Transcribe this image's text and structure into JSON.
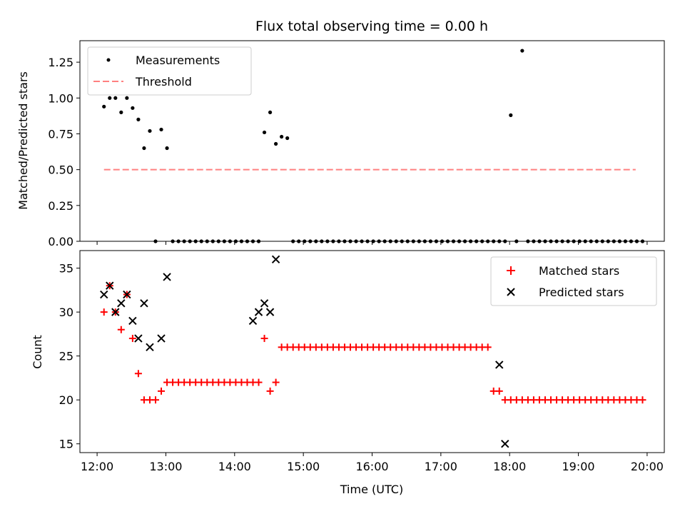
{
  "chart_data": [
    {
      "type": "scatter",
      "title": "Flux total observing time = 0.00 h",
      "xlabel": "",
      "ylabel": "Matched/Predicted stars",
      "xlim": [
        "11:45",
        "20:15"
      ],
      "ylim": [
        0,
        1.4
      ],
      "yticks": [
        "0.00",
        "0.25",
        "0.50",
        "0.75",
        "1.00",
        "1.25"
      ],
      "xticks": [
        "12:00",
        "13:00",
        "14:00",
        "15:00",
        "16:00",
        "17:00",
        "18:00",
        "19:00",
        "20:00"
      ],
      "legend_position": "top-left",
      "series": [
        {
          "name": "Measurements",
          "color": "#000000",
          "marker": "dot",
          "x": [
            "12:06",
            "12:11",
            "12:16",
            "12:21",
            "12:26",
            "12:31",
            "12:36",
            "12:41",
            "12:46",
            "12:51",
            "12:56",
            "13:01",
            "13:06",
            "13:11",
            "13:16",
            "13:21",
            "13:26",
            "13:31",
            "13:36",
            "13:41",
            "13:46",
            "13:51",
            "13:56",
            "14:01",
            "14:06",
            "14:11",
            "14:16",
            "14:21",
            "14:26",
            "14:31",
            "14:36",
            "14:41",
            "14:46",
            "14:51",
            "14:56",
            "15:01",
            "15:06",
            "15:11",
            "15:16",
            "15:21",
            "15:26",
            "15:31",
            "15:36",
            "15:41",
            "15:46",
            "15:51",
            "15:56",
            "16:01",
            "16:06",
            "16:11",
            "16:16",
            "16:21",
            "16:26",
            "16:31",
            "16:36",
            "16:41",
            "16:46",
            "16:51",
            "16:56",
            "17:01",
            "17:06",
            "17:11",
            "17:16",
            "17:21",
            "17:26",
            "17:31",
            "17:36",
            "17:41",
            "17:46",
            "17:51",
            "17:56",
            "18:01",
            "18:06",
            "18:11",
            "18:16",
            "18:21",
            "18:26",
            "18:31",
            "18:36",
            "18:41",
            "18:46",
            "18:51",
            "18:56",
            "19:01",
            "19:06",
            "19:11",
            "19:16",
            "19:21",
            "19:26",
            "19:31",
            "19:36",
            "19:41",
            "19:46",
            "19:51",
            "19:56"
          ],
          "y": [
            0.94,
            1.0,
            1.0,
            0.9,
            1.0,
            0.93,
            0.85,
            0.65,
            0.77,
            0.0,
            0.78,
            0.65,
            0.0,
            0.0,
            0.0,
            0.0,
            0.0,
            0.0,
            0.0,
            0.0,
            0.0,
            0.0,
            0.0,
            0.0,
            0.0,
            0.0,
            0.0,
            0.0,
            0.76,
            0.9,
            0.68,
            0.73,
            0.72,
            0.0,
            0.0,
            0.0,
            0.0,
            0.0,
            0.0,
            0.0,
            0.0,
            0.0,
            0.0,
            0.0,
            0.0,
            0.0,
            0.0,
            0.0,
            0.0,
            0.0,
            0.0,
            0.0,
            0.0,
            0.0,
            0.0,
            0.0,
            0.0,
            0.0,
            0.0,
            0.0,
            0.0,
            0.0,
            0.0,
            0.0,
            0.0,
            0.0,
            0.0,
            0.0,
            0.0,
            0.0,
            0.0,
            0.88,
            0.0,
            1.33,
            0.0,
            0.0,
            0.0,
            0.0,
            0.0,
            0.0,
            0.0,
            0.0,
            0.0,
            0.0,
            0.0,
            0.0,
            0.0,
            0.0,
            0.0,
            0.0,
            0.0,
            0.0,
            0.0,
            0.0,
            0.0
          ]
        },
        {
          "name": "Threshold",
          "color": "#ff8080",
          "style": "dashed",
          "x": [
            "12:06",
            "19:50"
          ],
          "y": [
            0.5,
            0.5
          ]
        }
      ]
    },
    {
      "type": "scatter",
      "title": "",
      "xlabel": "Time (UTC)",
      "ylabel": "Count",
      "xlim": [
        "11:45",
        "20:15"
      ],
      "ylim": [
        14,
        37
      ],
      "yticks": [
        "15",
        "20",
        "25",
        "30",
        "35"
      ],
      "xticks": [
        "12:00",
        "13:00",
        "14:00",
        "15:00",
        "16:00",
        "17:00",
        "18:00",
        "19:00",
        "20:00"
      ],
      "legend_position": "top-right",
      "series": [
        {
          "name": "Matched stars",
          "color": "#ff0000",
          "marker": "plus",
          "x": [
            "12:06",
            "12:11",
            "12:16",
            "12:21",
            "12:26",
            "12:31",
            "12:36",
            "12:41",
            "12:46",
            "12:51",
            "12:56",
            "13:01",
            "13:06",
            "13:11",
            "13:16",
            "13:21",
            "13:26",
            "13:31",
            "13:36",
            "13:41",
            "13:46",
            "13:51",
            "13:56",
            "14:01",
            "14:06",
            "14:11",
            "14:16",
            "14:21",
            "14:26",
            "14:31",
            "14:36",
            "14:41",
            "14:46",
            "14:51",
            "14:56",
            "15:01",
            "15:06",
            "15:11",
            "15:16",
            "15:21",
            "15:26",
            "15:31",
            "15:36",
            "15:41",
            "15:46",
            "15:51",
            "15:56",
            "16:01",
            "16:06",
            "16:11",
            "16:16",
            "16:21",
            "16:26",
            "16:31",
            "16:36",
            "16:41",
            "16:46",
            "16:51",
            "16:56",
            "17:01",
            "17:06",
            "17:11",
            "17:16",
            "17:21",
            "17:26",
            "17:31",
            "17:36",
            "17:41",
            "17:46",
            "17:51",
            "17:56",
            "18:01",
            "18:06",
            "18:11",
            "18:16",
            "18:21",
            "18:26",
            "18:31",
            "18:36",
            "18:41",
            "18:46",
            "18:51",
            "18:56",
            "19:01",
            "19:06",
            "19:11",
            "19:16",
            "19:21",
            "19:26",
            "19:31",
            "19:36",
            "19:41",
            "19:46",
            "19:51",
            "19:56"
          ],
          "y": [
            30,
            33,
            30,
            28,
            32,
            27,
            23,
            20,
            20,
            20,
            21,
            22,
            22,
            22,
            22,
            22,
            22,
            22,
            22,
            22,
            22,
            22,
            22,
            22,
            22,
            22,
            22,
            22,
            27,
            21,
            22,
            26,
            26,
            26,
            26,
            26,
            26,
            26,
            26,
            26,
            26,
            26,
            26,
            26,
            26,
            26,
            26,
            26,
            26,
            26,
            26,
            26,
            26,
            26,
            26,
            26,
            26,
            26,
            26,
            26,
            26,
            26,
            26,
            26,
            26,
            26,
            26,
            26,
            21,
            21,
            20,
            20,
            20,
            20,
            20,
            20,
            20,
            20,
            20,
            20,
            20,
            20,
            20,
            20,
            20,
            20,
            20,
            20,
            20,
            20,
            20,
            20,
            20,
            20,
            20
          ]
        },
        {
          "name": "Predicted stars",
          "color": "#000000",
          "marker": "x",
          "x": [
            "12:06",
            "12:11",
            "12:16",
            "12:21",
            "12:26",
            "12:31",
            "12:36",
            "12:41",
            "12:46",
            "12:56",
            "13:01",
            "14:16",
            "14:21",
            "14:26",
            "14:31",
            "14:36",
            "17:51",
            "17:56"
          ],
          "y": [
            32,
            33,
            30,
            31,
            32,
            29,
            27,
            31,
            26,
            27,
            34,
            29,
            30,
            31,
            30,
            36,
            24,
            15
          ]
        }
      ]
    }
  ]
}
